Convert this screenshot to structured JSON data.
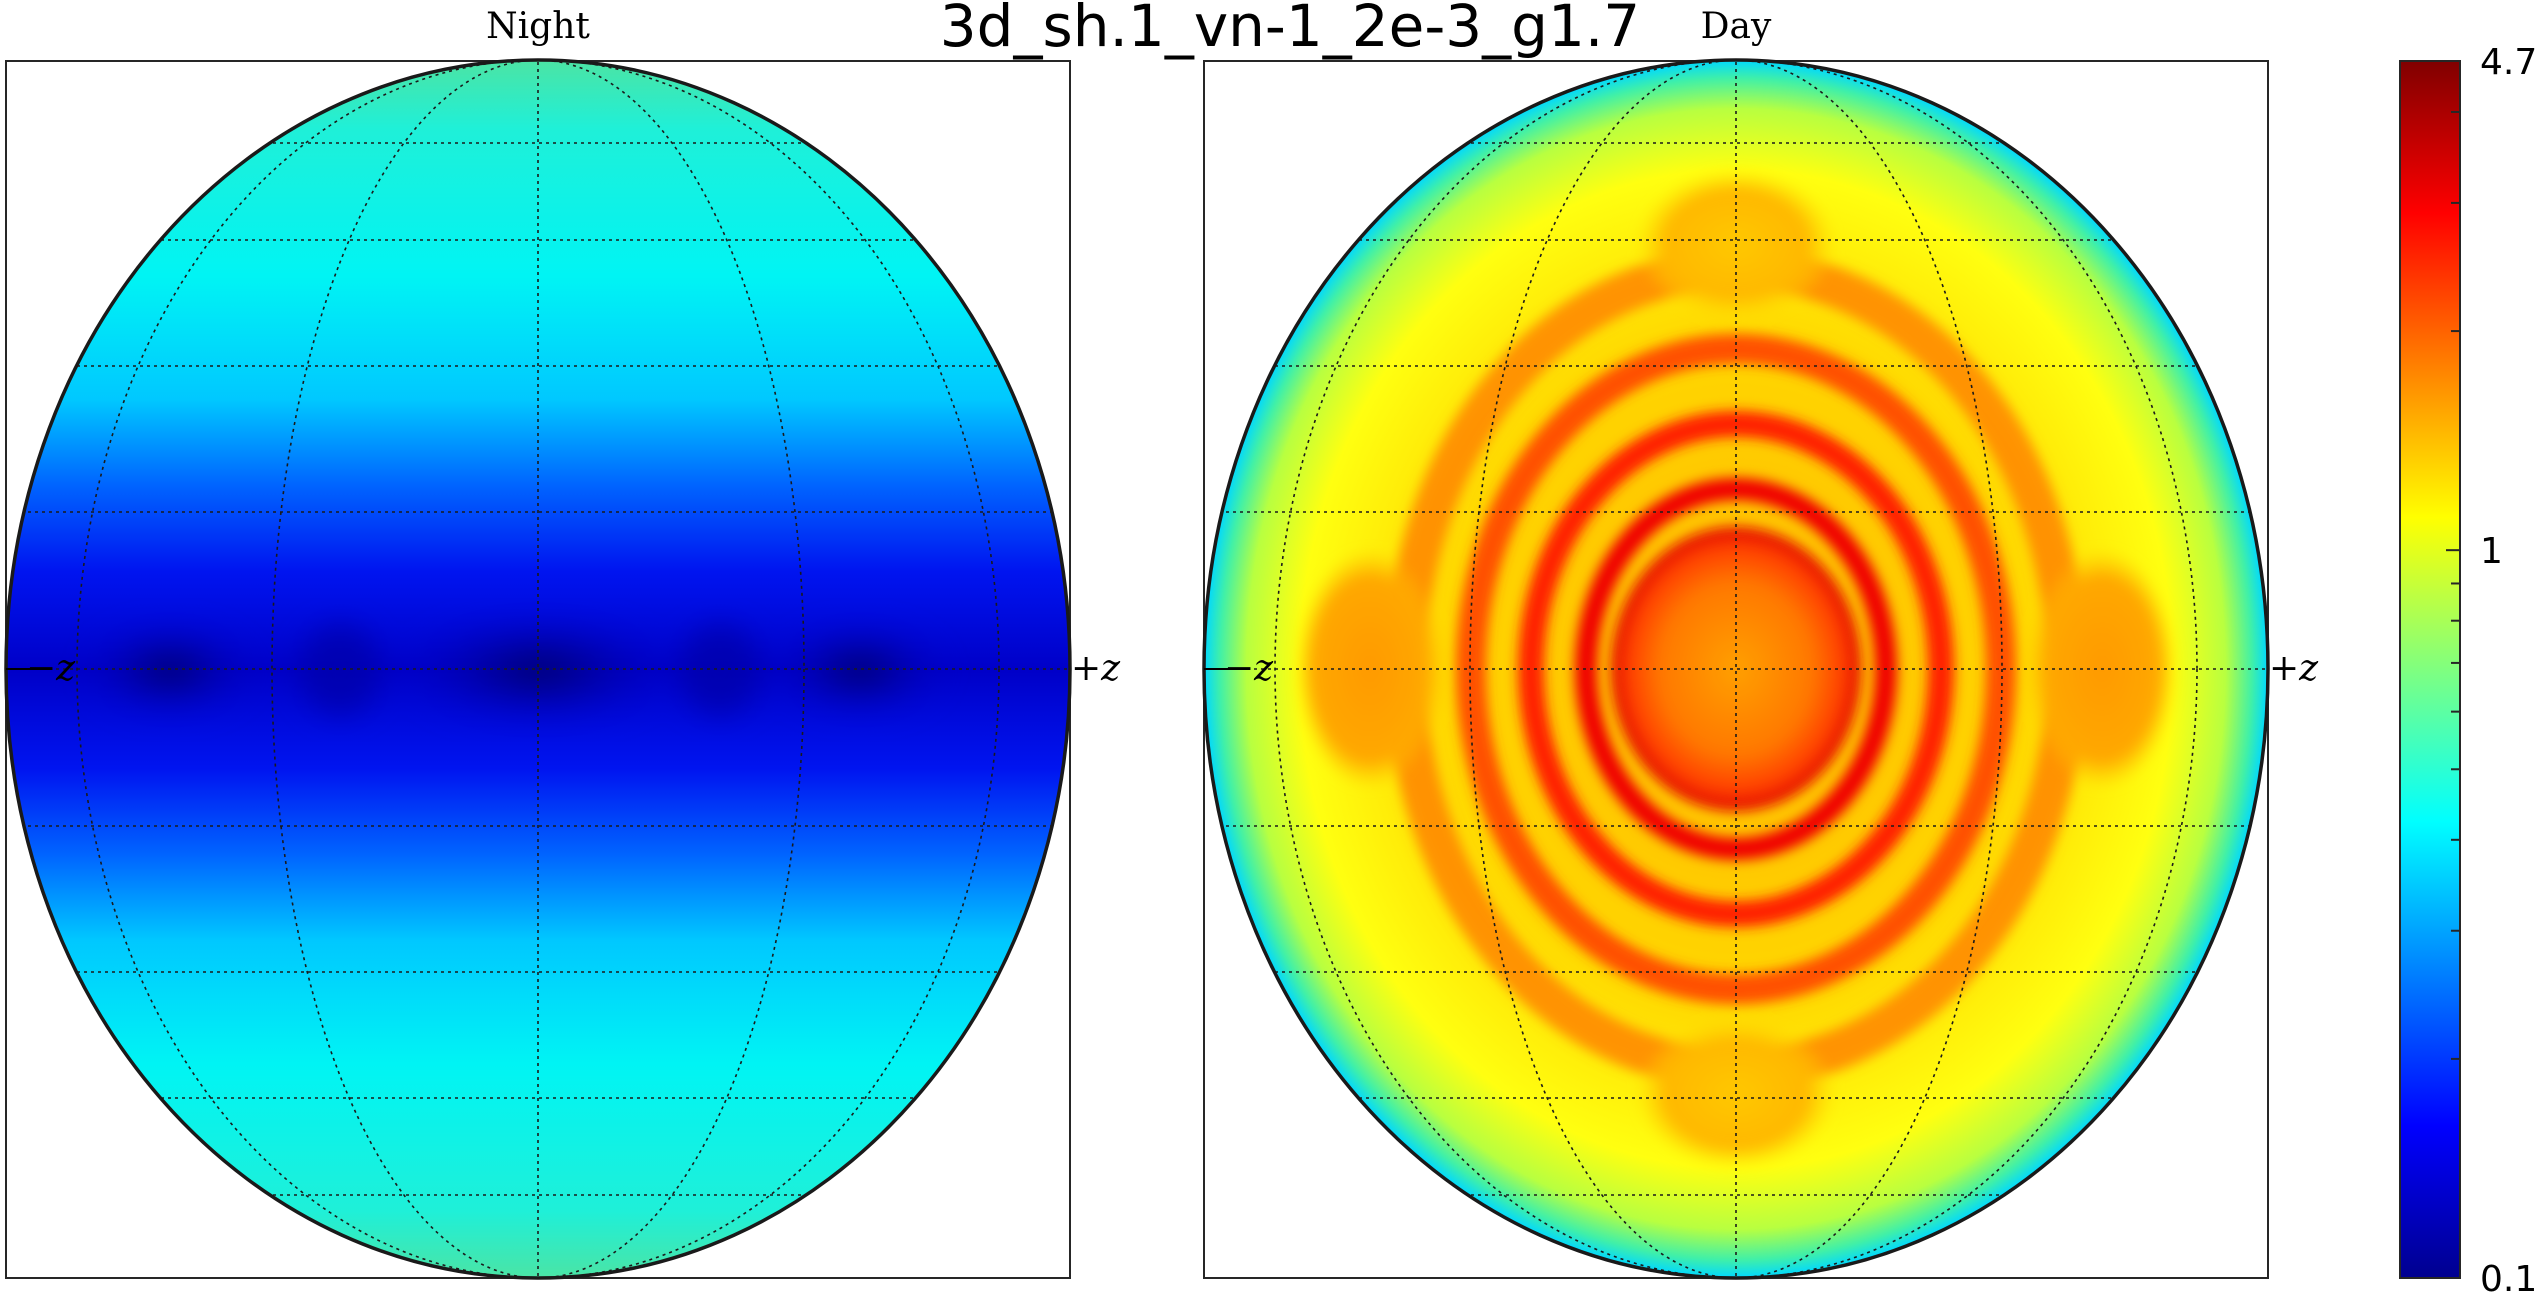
{
  "chart_data": {
    "type": "heatmap",
    "title": "3d_sh.1_vn-1_2e-3_g1.7",
    "panels": [
      {
        "name": "Night",
        "left_label": "−z",
        "right_label": "+z",
        "min_value": 0.1,
        "max_value": 0.55
      },
      {
        "name": "Day",
        "left_label": "−z",
        "right_label": "+z",
        "min_value": 0.45,
        "max_value": 4.0
      }
    ],
    "colorbar": {
      "scale": "log",
      "colormap": "jet",
      "min": 0.1,
      "max": 4.7,
      "tick_labels": [
        "4.7",
        "1",
        "0.1"
      ],
      "tick_values": [
        4.7,
        1,
        0.1
      ]
    },
    "grid": true
  },
  "colors": {
    "jet": [
      "#00008f",
      "#0000ff",
      "#00ffff",
      "#ffff00",
      "#ff0000",
      "#800000"
    ]
  }
}
